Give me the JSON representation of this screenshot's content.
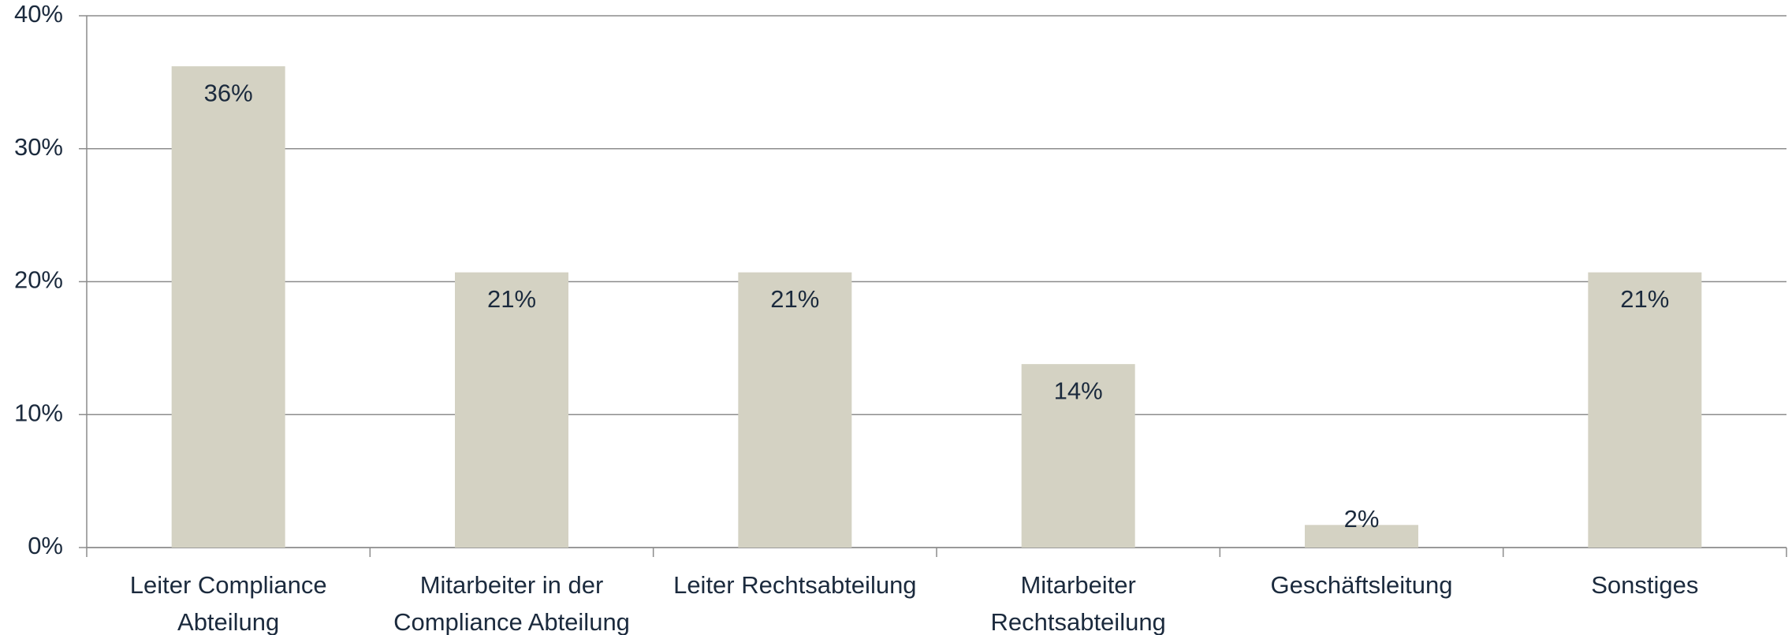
{
  "chart_data": {
    "type": "bar",
    "categories": [
      "Leiter Compliance Abteilung",
      "Mitarbeiter in der Compliance Abteilung",
      "Leiter Rechtsabteilung",
      "Mitarbeiter Rechtsabteilung",
      "Geschäftsleitung",
      "Sonstiges"
    ],
    "values": [
      36.2,
      20.7,
      20.7,
      13.8,
      1.7,
      20.7
    ],
    "value_labels": [
      "36%",
      "21%",
      "21%",
      "14%",
      "2%",
      "21%"
    ],
    "color": "#d4d2c3",
    "ylim": [
      0,
      40
    ],
    "yticks": [
      {
        "value": 0,
        "label": "0%"
      },
      {
        "value": 10,
        "label": "10%"
      },
      {
        "value": 20,
        "label": "20%"
      },
      {
        "value": 30,
        "label": "30%"
      },
      {
        "value": 40,
        "label": "40%"
      }
    ],
    "grid": true
  }
}
